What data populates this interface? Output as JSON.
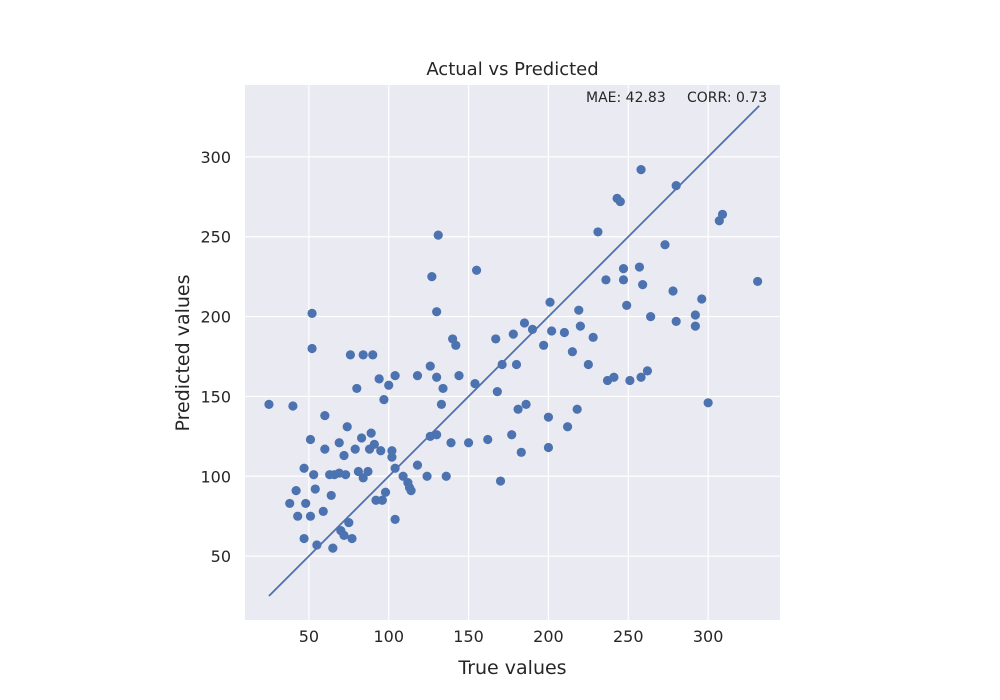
{
  "chart_data": {
    "type": "scatter",
    "title": "Actual vs Predicted",
    "xlabel": "True values",
    "ylabel": "Predicted values",
    "xlim": [
      10,
      345
    ],
    "ylim": [
      10,
      345
    ],
    "xticks": [
      50,
      100,
      150,
      200,
      250,
      300
    ],
    "yticks": [
      50,
      100,
      150,
      200,
      250,
      300
    ],
    "grid": true,
    "background": "#eaeaf2",
    "grid_color": "#ffffff",
    "point_color": "#4c72b0",
    "line_color": "#4c72b0",
    "annotations": {
      "mae": "MAE: 42.83",
      "corr": "CORR: 0.73"
    },
    "reference_line": {
      "x": [
        25,
        332
      ],
      "y": [
        25,
        332
      ]
    },
    "points": [
      [
        25,
        145
      ],
      [
        40,
        144
      ],
      [
        38,
        83
      ],
      [
        42,
        91
      ],
      [
        43,
        75
      ],
      [
        47,
        61
      ],
      [
        47,
        105
      ],
      [
        48,
        83
      ],
      [
        51,
        123
      ],
      [
        51,
        75
      ],
      [
        52,
        202
      ],
      [
        52,
        180
      ],
      [
        53,
        101
      ],
      [
        54,
        92
      ],
      [
        55,
        57
      ],
      [
        59,
        78
      ],
      [
        60,
        138
      ],
      [
        60,
        117
      ],
      [
        63,
        101
      ],
      [
        64,
        88
      ],
      [
        65,
        55
      ],
      [
        66,
        101
      ],
      [
        69,
        121
      ],
      [
        69,
        102
      ],
      [
        70,
        66
      ],
      [
        72,
        113
      ],
      [
        72,
        63
      ],
      [
        73,
        101
      ],
      [
        74,
        131
      ],
      [
        75,
        71
      ],
      [
        76,
        176
      ],
      [
        77,
        61
      ],
      [
        79,
        117
      ],
      [
        80,
        155
      ],
      [
        81,
        103
      ],
      [
        83,
        124
      ],
      [
        84,
        176
      ],
      [
        84,
        99
      ],
      [
        87,
        103
      ],
      [
        88,
        117
      ],
      [
        89,
        127
      ],
      [
        90,
        176
      ],
      [
        91,
        120
      ],
      [
        92,
        85
      ],
      [
        94,
        161
      ],
      [
        95,
        116
      ],
      [
        96,
        85
      ],
      [
        97,
        148
      ],
      [
        98,
        90
      ],
      [
        100,
        157
      ],
      [
        102,
        116
      ],
      [
        102,
        112
      ],
      [
        104,
        105
      ],
      [
        104,
        163
      ],
      [
        104,
        73
      ],
      [
        109,
        100
      ],
      [
        112,
        96
      ],
      [
        113,
        93
      ],
      [
        114,
        91
      ],
      [
        118,
        163
      ],
      [
        118,
        107
      ],
      [
        124,
        100
      ],
      [
        126,
        169
      ],
      [
        126,
        125
      ],
      [
        127,
        225
      ],
      [
        130,
        126
      ],
      [
        130,
        162
      ],
      [
        130,
        203
      ],
      [
        131,
        251
      ],
      [
        133,
        145
      ],
      [
        134,
        155
      ],
      [
        136,
        100
      ],
      [
        139,
        121
      ],
      [
        140,
        186
      ],
      [
        142,
        182
      ],
      [
        144,
        163
      ],
      [
        150,
        121
      ],
      [
        154,
        158
      ],
      [
        155,
        229
      ],
      [
        162,
        123
      ],
      [
        167,
        186
      ],
      [
        168,
        153
      ],
      [
        170,
        97
      ],
      [
        171,
        170
      ],
      [
        177,
        126
      ],
      [
        178,
        189
      ],
      [
        180,
        170
      ],
      [
        181,
        142
      ],
      [
        183,
        115
      ],
      [
        185,
        196
      ],
      [
        186,
        145
      ],
      [
        190,
        192
      ],
      [
        197,
        182
      ],
      [
        200,
        137
      ],
      [
        200,
        118
      ],
      [
        202,
        191
      ],
      [
        201,
        209
      ],
      [
        210,
        190
      ],
      [
        212,
        131
      ],
      [
        215,
        178
      ],
      [
        218,
        142
      ],
      [
        219,
        204
      ],
      [
        220,
        194
      ],
      [
        225,
        170
      ],
      [
        228,
        187
      ],
      [
        231,
        253
      ],
      [
        236,
        223
      ],
      [
        237,
        160
      ],
      [
        241,
        162
      ],
      [
        243,
        274
      ],
      [
        245,
        272
      ],
      [
        247,
        223
      ],
      [
        247,
        230
      ],
      [
        249,
        207
      ],
      [
        251,
        160
      ],
      [
        257,
        231
      ],
      [
        258,
        162
      ],
      [
        258,
        292
      ],
      [
        259,
        220
      ],
      [
        262,
        166
      ],
      [
        264,
        200
      ],
      [
        273,
        245
      ],
      [
        278,
        216
      ],
      [
        280,
        282
      ],
      [
        280,
        197
      ],
      [
        292,
        194
      ],
      [
        292,
        201
      ],
      [
        296,
        211
      ],
      [
        300,
        146
      ],
      [
        307,
        260
      ],
      [
        309,
        264
      ],
      [
        331,
        222
      ]
    ]
  }
}
